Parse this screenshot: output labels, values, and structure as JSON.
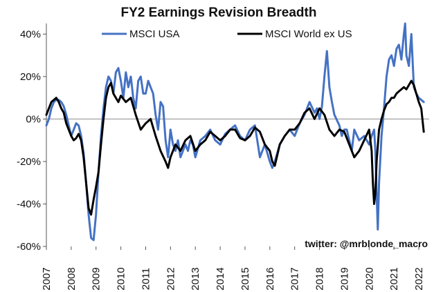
{
  "chart_data": {
    "type": "line",
    "title": "FY2 Earnings Revision Breadth",
    "credit": "twitter: @mrblonde_macro",
    "xlim": [
      2007,
      2022.25
    ],
    "ylim": [
      -60,
      45
    ],
    "x_ticks": [
      "2007",
      "2008",
      "2009",
      "2010",
      "2011",
      "2012",
      "2013",
      "2014",
      "2015",
      "2016",
      "2017",
      "2018",
      "2019",
      "2020",
      "2021",
      "2022"
    ],
    "y_ticks": [
      {
        "value": 40,
        "label": "40%"
      },
      {
        "value": 20,
        "label": "20%"
      },
      {
        "value": 0,
        "label": "0%"
      },
      {
        "value": -20,
        "label": "-20%"
      },
      {
        "value": -40,
        "label": "-40%"
      },
      {
        "value": -60,
        "label": "-60%"
      }
    ],
    "colors": {
      "MSCI USA": "#4472c4",
      "MSCI World ex US": "#000000",
      "zero_line": "#8c8c8c",
      "axis": "#555555"
    },
    "series": [
      {
        "name": "MSCI USA",
        "x": [
          2007.0,
          2007.1,
          2007.2,
          2007.3,
          2007.4,
          2007.5,
          2007.6,
          2007.7,
          2007.8,
          2007.9,
          2008.0,
          2008.1,
          2008.2,
          2008.3,
          2008.4,
          2008.5,
          2008.6,
          2008.7,
          2008.8,
          2008.9,
          2009.0,
          2009.1,
          2009.2,
          2009.3,
          2009.4,
          2009.5,
          2009.6,
          2009.7,
          2009.8,
          2009.9,
          2010.0,
          2010.1,
          2010.2,
          2010.3,
          2010.4,
          2010.5,
          2010.6,
          2010.7,
          2010.8,
          2010.9,
          2011.0,
          2011.1,
          2011.2,
          2011.3,
          2011.4,
          2011.5,
          2011.6,
          2011.7,
          2011.8,
          2011.9,
          2012.0,
          2012.1,
          2012.2,
          2012.3,
          2012.4,
          2012.5,
          2012.6,
          2012.7,
          2012.8,
          2012.9,
          2013.0,
          2013.2,
          2013.4,
          2013.6,
          2013.8,
          2014.0,
          2014.2,
          2014.4,
          2014.6,
          2014.8,
          2015.0,
          2015.2,
          2015.4,
          2015.6,
          2015.8,
          2016.0,
          2016.1,
          2016.2,
          2016.4,
          2016.6,
          2016.8,
          2017.0,
          2017.2,
          2017.4,
          2017.6,
          2017.8,
          2017.9,
          2018.0,
          2018.1,
          2018.2,
          2018.3,
          2018.4,
          2018.5,
          2018.6,
          2018.8,
          2018.9,
          2019.0,
          2019.1,
          2019.2,
          2019.3,
          2019.4,
          2019.6,
          2019.8,
          2020.0,
          2020.1,
          2020.2,
          2020.25,
          2020.3,
          2020.35,
          2020.4,
          2020.5,
          2020.6,
          2020.7,
          2020.8,
          2020.9,
          2021.0,
          2021.1,
          2021.2,
          2021.3,
          2021.4,
          2021.45,
          2021.5,
          2021.6,
          2021.7,
          2021.8,
          2021.9,
          2022.0,
          2022.1,
          2022.2
        ],
        "values": [
          -3,
          0,
          5,
          8,
          9,
          9,
          8,
          6,
          2,
          -3,
          -8,
          -5,
          -2,
          -3,
          -8,
          -16,
          -30,
          -45,
          -56,
          -57,
          -45,
          -25,
          -8,
          5,
          15,
          20,
          18,
          12,
          22,
          24,
          18,
          10,
          22,
          15,
          20,
          10,
          5,
          18,
          20,
          12,
          12,
          18,
          15,
          12,
          2,
          -5,
          8,
          6,
          -10,
          -18,
          -5,
          -12,
          -15,
          -10,
          -18,
          -15,
          -12,
          -15,
          -10,
          -12,
          -18,
          -10,
          -8,
          -5,
          -10,
          -12,
          -7,
          -5,
          -3,
          -8,
          -10,
          -5,
          -3,
          -18,
          -12,
          -20,
          -23,
          -20,
          -12,
          -8,
          -5,
          -8,
          -2,
          2,
          8,
          3,
          5,
          0,
          6,
          20,
          32,
          15,
          8,
          2,
          -3,
          -8,
          -5,
          -5,
          -10,
          -15,
          -5,
          -10,
          -8,
          -12,
          -8,
          -5,
          -15,
          -35,
          -52,
          -30,
          -8,
          5,
          20,
          28,
          30,
          25,
          33,
          35,
          28,
          40,
          45,
          30,
          25,
          40,
          15,
          12,
          10,
          9,
          8
        ],
        "width": 3
      },
      {
        "name": "MSCI World ex US",
        "x": [
          2007.0,
          2007.1,
          2007.2,
          2007.3,
          2007.4,
          2007.5,
          2007.6,
          2007.7,
          2007.8,
          2007.9,
          2008.0,
          2008.1,
          2008.2,
          2008.3,
          2008.4,
          2008.5,
          2008.6,
          2008.7,
          2008.8,
          2008.9,
          2009.0,
          2009.1,
          2009.2,
          2009.3,
          2009.4,
          2009.5,
          2009.6,
          2009.7,
          2009.8,
          2009.9,
          2010.0,
          2010.2,
          2010.4,
          2010.6,
          2010.8,
          2011.0,
          2011.2,
          2011.4,
          2011.6,
          2011.8,
          2011.9,
          2012.0,
          2012.2,
          2012.4,
          2012.6,
          2012.8,
          2013.0,
          2013.2,
          2013.4,
          2013.6,
          2013.8,
          2014.0,
          2014.2,
          2014.4,
          2014.6,
          2014.8,
          2015.0,
          2015.2,
          2015.4,
          2015.6,
          2015.8,
          2016.0,
          2016.1,
          2016.2,
          2016.4,
          2016.6,
          2016.8,
          2017.0,
          2017.2,
          2017.4,
          2017.6,
          2017.8,
          2018.0,
          2018.2,
          2018.4,
          2018.6,
          2018.8,
          2019.0,
          2019.2,
          2019.4,
          2019.6,
          2019.8,
          2020.0,
          2020.1,
          2020.15,
          2020.2,
          2020.25,
          2020.3,
          2020.4,
          2020.5,
          2020.6,
          2020.7,
          2020.8,
          2020.9,
          2021.0,
          2021.1,
          2021.2,
          2021.3,
          2021.4,
          2021.5,
          2021.6,
          2021.7,
          2021.8,
          2021.9,
          2022.0,
          2022.1,
          2022.2
        ],
        "values": [
          2,
          5,
          8,
          9,
          10,
          8,
          5,
          3,
          -2,
          -5,
          -8,
          -10,
          -9,
          -7,
          -10,
          -18,
          -30,
          -42,
          -45,
          -38,
          -32,
          -25,
          -12,
          0,
          10,
          15,
          17,
          12,
          10,
          8,
          11,
          8,
          10,
          2,
          -5,
          -2,
          0,
          -8,
          -15,
          -20,
          -23,
          -18,
          -12,
          -15,
          -10,
          -8,
          -15,
          -12,
          -10,
          -6,
          -8,
          -10,
          -8,
          -5,
          -5,
          -9,
          -10,
          -8,
          -4,
          -6,
          -12,
          -15,
          -20,
          -22,
          -12,
          -8,
          -5,
          -5,
          -2,
          3,
          5,
          0,
          5,
          2,
          -5,
          -8,
          -5,
          -6,
          -12,
          -18,
          -15,
          -10,
          -5,
          -15,
          -30,
          -40,
          -35,
          -20,
          -5,
          0,
          4,
          7,
          8,
          10,
          10,
          12,
          13,
          14,
          15,
          14,
          16,
          18,
          16,
          12,
          8,
          5,
          -6
        ],
        "width": 3
      }
    ]
  }
}
